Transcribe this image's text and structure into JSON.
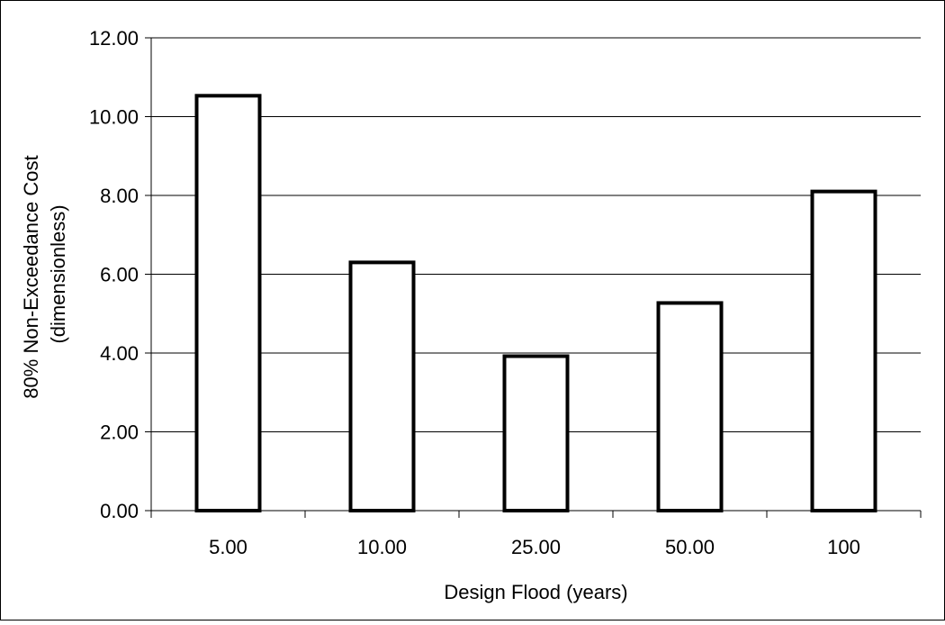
{
  "chart_data": {
    "type": "bar",
    "title": "",
    "xlabel": "Design Flood (years)",
    "ylabel_lines": [
      "80% Non-Exceedance Cost",
      "(dimensionless)"
    ],
    "categories": [
      "5.00",
      "10.00",
      "25.00",
      "50.00",
      "100"
    ],
    "values": [
      10.53,
      6.3,
      3.92,
      5.27,
      8.1
    ],
    "ylim": [
      0,
      12
    ],
    "yticks": [
      "0.00",
      "2.00",
      "4.00",
      "6.00",
      "8.00",
      "10.00",
      "12.00"
    ],
    "grid": true,
    "legend": "none",
    "colors": {
      "bar_fill": "#ffffff",
      "bar_stroke": "#000000",
      "grid": "#000000",
      "axis": "#000000",
      "background": "#ffffff"
    }
  }
}
